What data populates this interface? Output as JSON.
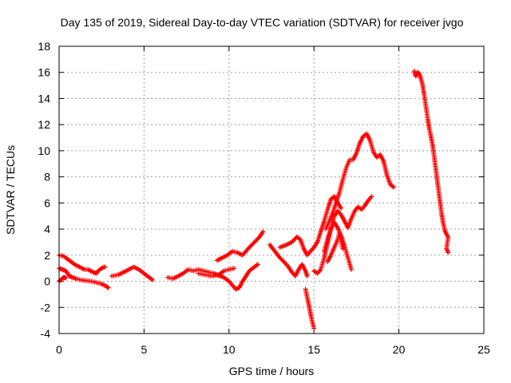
{
  "chart_data": {
    "type": "scatter",
    "title": "Day 135 of 2019, Sidereal Day-to-day VTEC variation (SDTVAR) for receiver jvgo",
    "xlabel": "GPS time / hours",
    "ylabel": "SDTVAR / TECUs",
    "xlim": [
      0,
      25
    ],
    "ylim": [
      -4,
      18
    ],
    "xticks": [
      0,
      5,
      10,
      15,
      20,
      25
    ],
    "yticks": [
      -4,
      -2,
      0,
      2,
      4,
      6,
      8,
      10,
      12,
      14,
      16,
      18
    ],
    "grid": true,
    "legend": "none",
    "marker": "plus",
    "color": "#ff0000",
    "series": [
      {
        "values": [
          [
            0.0,
            2.0
          ],
          [
            0.3,
            1.9
          ],
          [
            0.6,
            1.6
          ],
          [
            0.9,
            1.3
          ],
          [
            1.2,
            1.1
          ],
          [
            1.5,
            0.9
          ],
          [
            1.7,
            0.9
          ],
          [
            2.0,
            0.7
          ],
          [
            2.2,
            0.6
          ],
          [
            2.3,
            0.8
          ],
          [
            2.5,
            1.0
          ],
          [
            2.7,
            1.1
          ]
        ]
      },
      {
        "values": [
          [
            0.0,
            1.0
          ],
          [
            0.2,
            0.9
          ],
          [
            0.4,
            0.8
          ],
          [
            0.5,
            0.6
          ],
          [
            0.6,
            0.4
          ],
          [
            0.8,
            0.3
          ],
          [
            1.0,
            0.2
          ],
          [
            1.3,
            0.1
          ],
          [
            1.6,
            0.05
          ],
          [
            1.9,
            0.0
          ],
          [
            2.2,
            -0.1
          ],
          [
            2.5,
            -0.2
          ],
          [
            2.8,
            -0.4
          ],
          [
            2.9,
            -0.5
          ]
        ]
      },
      {
        "values": [
          [
            0.0,
            0.0
          ],
          [
            0.1,
            0.1
          ],
          [
            0.2,
            0.25
          ],
          [
            0.3,
            0.3
          ],
          [
            0.4,
            0.25
          ]
        ]
      },
      {
        "values": [
          [
            3.1,
            0.4
          ],
          [
            3.5,
            0.5
          ],
          [
            3.8,
            0.7
          ],
          [
            4.1,
            0.9
          ],
          [
            4.4,
            1.1
          ],
          [
            4.7,
            0.9
          ],
          [
            5.0,
            0.6
          ],
          [
            5.3,
            0.3
          ],
          [
            5.5,
            0.1
          ]
        ]
      },
      {
        "values": [
          [
            6.4,
            0.3
          ],
          [
            6.7,
            0.2
          ],
          [
            7.0,
            0.4
          ],
          [
            7.3,
            0.6
          ],
          [
            7.6,
            0.9
          ],
          [
            7.9,
            0.8
          ],
          [
            8.2,
            0.9
          ],
          [
            8.5,
            0.8
          ],
          [
            8.8,
            0.7
          ],
          [
            9.1,
            0.6
          ],
          [
            9.3,
            0.5
          ],
          [
            9.5,
            0.4
          ],
          [
            9.7,
            0.3
          ],
          [
            10.0,
            0.0
          ],
          [
            10.2,
            -0.3
          ],
          [
            10.4,
            -0.6
          ],
          [
            10.6,
            -0.5
          ],
          [
            10.8,
            0.0
          ],
          [
            11.0,
            0.4
          ],
          [
            11.2,
            0.8
          ],
          [
            11.5,
            1.1
          ],
          [
            11.7,
            1.3
          ]
        ]
      },
      {
        "values": [
          [
            8.2,
            0.6
          ],
          [
            8.6,
            0.5
          ],
          [
            9.0,
            0.4
          ],
          [
            9.4,
            0.5
          ],
          [
            9.7,
            0.8
          ],
          [
            10.0,
            0.9
          ],
          [
            10.3,
            1.0
          ]
        ]
      },
      {
        "values": [
          [
            9.3,
            1.6
          ],
          [
            9.6,
            1.8
          ],
          [
            9.9,
            2.0
          ],
          [
            10.2,
            2.3
          ],
          [
            10.5,
            2.2
          ],
          [
            10.8,
            2.0
          ],
          [
            11.0,
            2.3
          ],
          [
            11.2,
            2.6
          ],
          [
            11.5,
            3.0
          ],
          [
            11.8,
            3.4
          ],
          [
            12.0,
            3.8
          ]
        ]
      },
      {
        "values": [
          [
            12.4,
            2.8
          ],
          [
            12.7,
            2.3
          ],
          [
            13.0,
            1.8
          ],
          [
            13.3,
            1.4
          ],
          [
            13.5,
            1.1
          ],
          [
            13.7,
            0.7
          ],
          [
            13.9,
            0.4
          ],
          [
            14.1,
            0.9
          ],
          [
            14.3,
            1.3
          ],
          [
            14.5,
            0.8
          ],
          [
            14.6,
            0.4
          ]
        ]
      },
      {
        "values": [
          [
            13.0,
            2.6
          ],
          [
            13.4,
            2.8
          ],
          [
            13.7,
            3.0
          ],
          [
            14.0,
            3.4
          ],
          [
            14.2,
            3.2
          ],
          [
            14.4,
            2.5
          ],
          [
            14.6,
            2.0
          ],
          [
            14.8,
            2.3
          ],
          [
            15.0,
            2.6
          ],
          [
            15.2,
            3.0
          ],
          [
            15.4,
            3.8
          ],
          [
            15.6,
            4.6
          ],
          [
            15.8,
            5.5
          ],
          [
            16.0,
            6.3
          ],
          [
            16.2,
            6.5
          ],
          [
            16.4,
            6.0
          ],
          [
            16.6,
            5.6
          ]
        ]
      },
      {
        "values": [
          [
            14.5,
            -0.6
          ],
          [
            14.6,
            -1.2
          ],
          [
            14.7,
            -1.8
          ],
          [
            14.8,
            -2.5
          ],
          [
            14.9,
            -3.1
          ],
          [
            15.0,
            -3.6
          ]
        ]
      },
      {
        "values": [
          [
            15.0,
            0.8
          ],
          [
            15.2,
            0.6
          ],
          [
            15.4,
            0.9
          ],
          [
            15.6,
            1.8
          ],
          [
            15.8,
            2.9
          ],
          [
            16.0,
            4.1
          ],
          [
            16.2,
            5.0
          ],
          [
            16.4,
            5.4
          ],
          [
            16.6,
            5.1
          ],
          [
            16.8,
            4.6
          ],
          [
            17.0,
            4.1
          ],
          [
            17.2,
            4.8
          ],
          [
            17.4,
            5.4
          ],
          [
            17.6,
            5.7
          ],
          [
            17.8,
            5.5
          ],
          [
            18.0,
            5.8
          ],
          [
            18.2,
            6.2
          ],
          [
            18.4,
            6.5
          ]
        ]
      },
      {
        "values": [
          [
            15.7,
            4.0
          ],
          [
            15.9,
            4.6
          ],
          [
            16.1,
            5.2
          ],
          [
            16.3,
            6.0
          ],
          [
            16.5,
            6.8
          ],
          [
            16.7,
            7.8
          ],
          [
            16.9,
            8.7
          ],
          [
            17.1,
            9.3
          ],
          [
            17.3,
            9.3
          ],
          [
            17.5,
            9.8
          ],
          [
            17.7,
            10.6
          ],
          [
            17.9,
            11.1
          ],
          [
            18.1,
            11.3
          ],
          [
            18.3,
            10.8
          ],
          [
            18.5,
            9.9
          ],
          [
            18.7,
            9.5
          ],
          [
            18.9,
            9.7
          ],
          [
            19.1,
            9.2
          ],
          [
            19.3,
            8.1
          ],
          [
            19.5,
            7.4
          ],
          [
            19.7,
            7.2
          ]
        ]
      },
      {
        "values": [
          [
            15.6,
            2.3
          ],
          [
            15.8,
            3.2
          ],
          [
            16.0,
            4.0
          ],
          [
            16.2,
            4.5
          ],
          [
            16.4,
            4.1
          ],
          [
            16.6,
            3.5
          ],
          [
            16.8,
            2.7
          ],
          [
            17.0,
            1.8
          ],
          [
            17.2,
            0.9
          ]
        ]
      },
      {
        "values": [
          [
            15.8,
            1.5
          ],
          [
            16.0,
            2.0
          ],
          [
            16.2,
            2.6
          ],
          [
            16.4,
            3.2
          ],
          [
            16.5,
            3.7
          ],
          [
            16.6,
            3.2
          ],
          [
            16.7,
            2.5
          ]
        ]
      },
      {
        "values": [
          [
            20.9,
            16.1
          ],
          [
            21.0,
            15.7
          ],
          [
            21.1,
            16.0
          ],
          [
            21.2,
            15.9
          ],
          [
            21.3,
            15.5
          ],
          [
            21.4,
            15.0
          ],
          [
            21.5,
            14.2
          ],
          [
            21.6,
            13.3
          ],
          [
            21.7,
            12.4
          ],
          [
            21.8,
            11.6
          ],
          [
            21.9,
            11.0
          ],
          [
            22.0,
            10.3
          ],
          [
            22.1,
            9.3
          ],
          [
            22.2,
            8.3
          ],
          [
            22.3,
            7.3
          ],
          [
            22.4,
            6.3
          ],
          [
            22.5,
            5.3
          ],
          [
            22.6,
            4.5
          ],
          [
            22.7,
            3.9
          ],
          [
            22.8,
            3.6
          ],
          [
            22.9,
            3.4
          ],
          [
            22.8,
            2.5
          ],
          [
            22.9,
            2.2
          ]
        ]
      }
    ]
  }
}
